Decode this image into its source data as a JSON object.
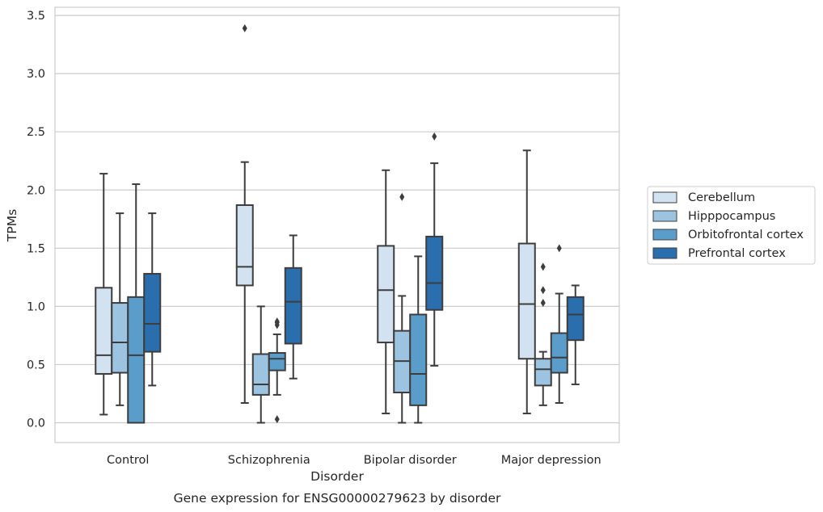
{
  "chart_data": {
    "type": "box",
    "title": "Gene expression for ENSG00000279623 by disorder",
    "xlabel": "Disorder",
    "ylabel": "TPMs",
    "ylim": [
      -0.17,
      3.57
    ],
    "yticks": [
      "0.0",
      "0.5",
      "1.0",
      "1.5",
      "2.0",
      "2.5",
      "3.0",
      "3.5"
    ],
    "ytick_values": [
      0,
      0.5,
      1.0,
      1.5,
      2.0,
      2.5,
      3.0,
      3.5
    ],
    "grid": "horizontal",
    "legend_position": "right",
    "categories": [
      "Control",
      "Schizophrenia",
      "Bipolar disorder",
      "Major depression"
    ],
    "series": [
      {
        "name": "Cerebellum",
        "color": "#d3e2f1",
        "boxes": [
          {
            "whislo": 0.07,
            "q1": 0.42,
            "med": 0.58,
            "q3": 1.16,
            "whishi": 2.14,
            "fliers": []
          },
          {
            "whislo": 0.17,
            "q1": 1.18,
            "med": 1.34,
            "q3": 1.87,
            "whishi": 2.24,
            "fliers": [
              3.39
            ]
          },
          {
            "whislo": 0.08,
            "q1": 0.69,
            "med": 1.14,
            "q3": 1.52,
            "whishi": 2.17,
            "fliers": []
          },
          {
            "whislo": 0.08,
            "q1": 0.55,
            "med": 1.02,
            "q3": 1.54,
            "whishi": 2.34,
            "fliers": []
          }
        ]
      },
      {
        "name": "Hipppocampus",
        "color": "#9cc3df",
        "boxes": [
          {
            "whislo": 0.15,
            "q1": 0.43,
            "med": 0.69,
            "q3": 1.03,
            "whishi": 1.8,
            "fliers": []
          },
          {
            "whislo": 0.0,
            "q1": 0.24,
            "med": 0.33,
            "q3": 0.59,
            "whishi": 1.0,
            "fliers": []
          },
          {
            "whislo": 0.0,
            "q1": 0.26,
            "med": 0.53,
            "q3": 0.79,
            "whishi": 1.09,
            "fliers": [
              1.94
            ]
          },
          {
            "whislo": 0.15,
            "q1": 0.32,
            "med": 0.46,
            "q3": 0.55,
            "whishi": 0.61,
            "fliers": [
              1.03,
              1.14,
              1.34
            ]
          }
        ]
      },
      {
        "name": "Orbitofrontal cortex",
        "color": "#5a9dca",
        "boxes": [
          {
            "whislo": 0.0,
            "q1": 0.0,
            "med": 0.58,
            "q3": 1.08,
            "whishi": 2.05,
            "fliers": []
          },
          {
            "whislo": 0.24,
            "q1": 0.45,
            "med": 0.55,
            "q3": 0.6,
            "whishi": 0.76,
            "fliers": [
              0.03,
              0.84,
              0.86,
              0.87
            ]
          },
          {
            "whislo": 0.0,
            "q1": 0.15,
            "med": 0.42,
            "q3": 0.93,
            "whishi": 1.43,
            "fliers": []
          },
          {
            "whislo": 0.17,
            "q1": 0.43,
            "med": 0.56,
            "q3": 0.77,
            "whishi": 1.11,
            "fliers": [
              1.5
            ]
          }
        ]
      },
      {
        "name": "Prefrontal cortex",
        "color": "#2b6eae",
        "boxes": [
          {
            "whislo": 0.32,
            "q1": 0.61,
            "med": 0.85,
            "q3": 1.28,
            "whishi": 1.8,
            "fliers": []
          },
          {
            "whislo": 0.38,
            "q1": 0.68,
            "med": 1.04,
            "q3": 1.33,
            "whishi": 1.61,
            "fliers": []
          },
          {
            "whislo": 0.49,
            "q1": 0.97,
            "med": 1.2,
            "q3": 1.6,
            "whishi": 2.23,
            "fliers": [
              2.46
            ]
          },
          {
            "whislo": 0.33,
            "q1": 0.71,
            "med": 0.93,
            "q3": 1.08,
            "whishi": 1.18,
            "fliers": []
          }
        ]
      }
    ]
  },
  "colors": {
    "grid": "#cccccc",
    "frame": "#cccccc",
    "line": "#3d3d3d",
    "text": "#262626"
  }
}
